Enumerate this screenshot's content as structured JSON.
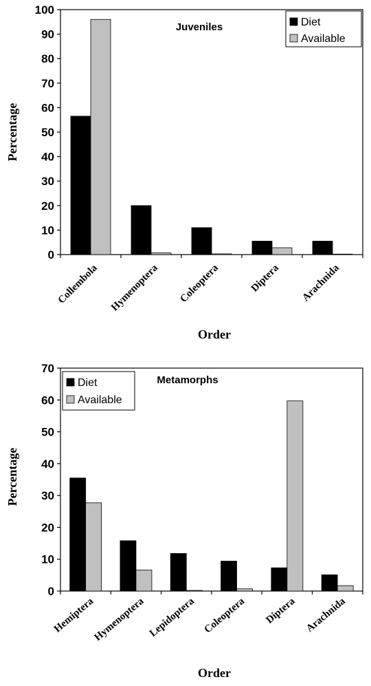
{
  "colors": {
    "diet": "#000000",
    "available": "#c0c0c0",
    "axis": "#000000"
  },
  "chart_data": [
    {
      "type": "bar",
      "title": "Juveniles",
      "xlabel": "Order",
      "ylabel": "Percentage",
      "ylim": [
        0,
        100
      ],
      "yticks": [
        0,
        10,
        20,
        30,
        40,
        50,
        60,
        70,
        80,
        90,
        100
      ],
      "categories": [
        "Collembola",
        "Hymenoptera",
        "Coleoptera",
        "Diptera",
        "Arachnida"
      ],
      "legend_position": "top-right",
      "grid": false,
      "series": [
        {
          "name": "Diet",
          "values": [
            56.5,
            20,
            11,
            5.5,
            5.5
          ]
        },
        {
          "name": "Available",
          "values": [
            96,
            0.7,
            0.3,
            2.8,
            0.2
          ]
        }
      ]
    },
    {
      "type": "bar",
      "title": "Metamorphs",
      "xlabel": "Order",
      "ylabel": "Percentage",
      "ylim": [
        0,
        70
      ],
      "yticks": [
        0,
        10,
        20,
        30,
        40,
        50,
        60,
        70
      ],
      "categories": [
        "Hemiptera",
        "Hymenoptera",
        "Lepidoptera",
        "Coleoptera",
        "Diptera",
        "Arachnida"
      ],
      "legend_position": "top-left",
      "grid": false,
      "series": [
        {
          "name": "Diet",
          "values": [
            35.5,
            15.8,
            11.8,
            9.4,
            7.3,
            5.1
          ]
        },
        {
          "name": "Available",
          "values": [
            27.7,
            6.6,
            0.2,
            0.7,
            59.7,
            1.7
          ]
        }
      ]
    }
  ]
}
